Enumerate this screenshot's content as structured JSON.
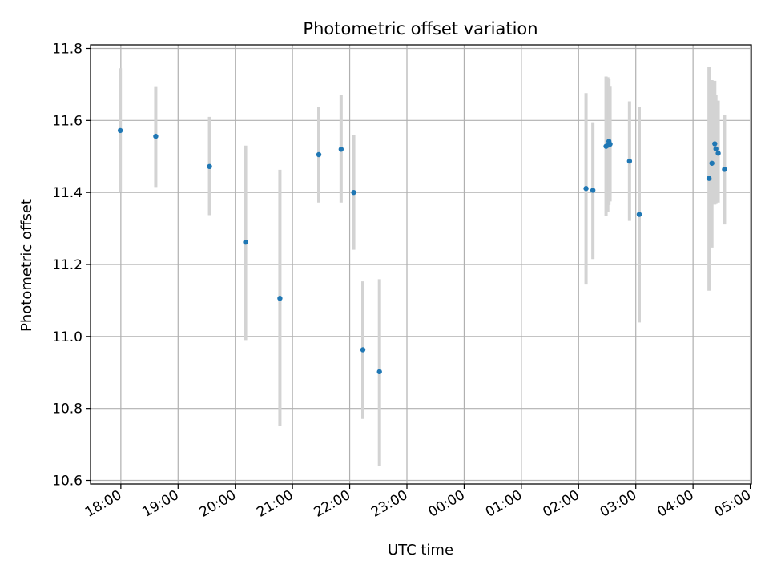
{
  "chart_data": {
    "type": "scatter",
    "title": "Photometric offset variation",
    "xlabel": "UTC time",
    "ylabel": "Photometric offset",
    "x_unit": "UTC hours (times after midnight written as 24+h)",
    "xlim": [
      17.47,
      29.02
    ],
    "ylim": [
      10.59,
      11.81
    ],
    "x_tick_values": [
      18,
      19,
      20,
      21,
      22,
      23,
      24,
      25,
      26,
      27,
      28,
      29
    ],
    "x_tick_labels": [
      "18:00",
      "19:00",
      "20:00",
      "21:00",
      "22:00",
      "23:00",
      "00:00",
      "01:00",
      "02:00",
      "03:00",
      "04:00",
      "05:00"
    ],
    "y_ticks": [
      10.6,
      10.8,
      11.0,
      11.2,
      11.4,
      11.6,
      11.8
    ],
    "y_tick_labels": [
      "10.6",
      "10.8",
      "11.0",
      "11.2",
      "11.4",
      "11.6",
      "11.8"
    ],
    "grid": true,
    "colors": {
      "point": "#1f77b4",
      "errorbar": "#d3d3d3",
      "grid": "#b0b0b0"
    },
    "points": [
      {
        "x": 17.99,
        "y": 11.572,
        "ylo": 11.4,
        "yhi": 11.745
      },
      {
        "x": 18.61,
        "y": 11.556,
        "ylo": 11.415,
        "yhi": 11.695
      },
      {
        "x": 19.55,
        "y": 11.472,
        "ylo": 11.337,
        "yhi": 11.61
      },
      {
        "x": 20.18,
        "y": 11.262,
        "ylo": 10.99,
        "yhi": 11.53
      },
      {
        "x": 20.78,
        "y": 11.106,
        "ylo": 10.752,
        "yhi": 11.463
      },
      {
        "x": 21.46,
        "y": 11.505,
        "ylo": 11.372,
        "yhi": 11.637
      },
      {
        "x": 21.85,
        "y": 11.52,
        "ylo": 11.372,
        "yhi": 11.671
      },
      {
        "x": 22.07,
        "y": 11.4,
        "ylo": 11.241,
        "yhi": 11.559
      },
      {
        "x": 22.23,
        "y": 10.963,
        "ylo": 10.771,
        "yhi": 11.153
      },
      {
        "x": 22.52,
        "y": 10.902,
        "ylo": 10.641,
        "yhi": 11.159
      },
      {
        "x": 26.13,
        "y": 11.411,
        "ylo": 11.144,
        "yhi": 11.676
      },
      {
        "x": 26.25,
        "y": 11.406,
        "ylo": 11.215,
        "yhi": 11.595
      },
      {
        "x": 26.48,
        "y": 11.528,
        "ylo": 11.335,
        "yhi": 11.722
      },
      {
        "x": 26.51,
        "y": 11.531,
        "ylo": 11.347,
        "yhi": 11.72
      },
      {
        "x": 26.53,
        "y": 11.542,
        "ylo": 11.365,
        "yhi": 11.716
      },
      {
        "x": 26.55,
        "y": 11.534,
        "ylo": 11.375,
        "yhi": 11.696
      },
      {
        "x": 26.89,
        "y": 11.487,
        "ylo": 11.321,
        "yhi": 11.653
      },
      {
        "x": 27.06,
        "y": 11.339,
        "ylo": 11.039,
        "yhi": 11.638
      },
      {
        "x": 28.28,
        "y": 11.439,
        "ylo": 11.127,
        "yhi": 11.75
      },
      {
        "x": 28.33,
        "y": 11.481,
        "ylo": 11.247,
        "yhi": 11.712
      },
      {
        "x": 28.38,
        "y": 11.535,
        "ylo": 11.366,
        "yhi": 11.71
      },
      {
        "x": 28.4,
        "y": 11.521,
        "ylo": 11.37,
        "yhi": 11.67
      },
      {
        "x": 28.44,
        "y": 11.509,
        "ylo": 11.372,
        "yhi": 11.655
      },
      {
        "x": 28.55,
        "y": 11.464,
        "ylo": 11.311,
        "yhi": 11.615
      }
    ]
  }
}
